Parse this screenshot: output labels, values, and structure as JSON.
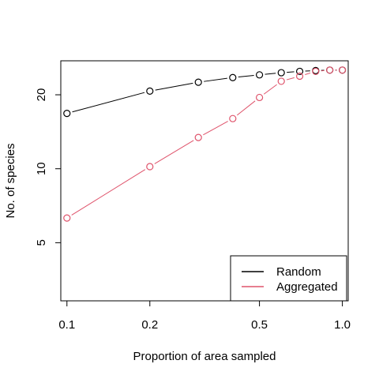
{
  "chart_data": {
    "type": "line",
    "xlabel": "Proportion of area sampled",
    "ylabel": "No. of species",
    "x_scale": "log",
    "y_scale": "log",
    "xlim": [
      0.095,
      1.05
    ],
    "ylim": [
      2.9,
      27.5
    ],
    "x_ticks": [
      {
        "value": 0.1,
        "label": "0.1"
      },
      {
        "value": 0.2,
        "label": "0.2"
      },
      {
        "value": 0.5,
        "label": "0.5"
      },
      {
        "value": 1.0,
        "label": "1.0"
      }
    ],
    "y_ticks": [
      {
        "value": 5,
        "label": "5"
      },
      {
        "value": 10,
        "label": "10"
      },
      {
        "value": 20,
        "label": "20"
      }
    ],
    "grid": false,
    "legend_position": "bottom-right",
    "series": [
      {
        "name": "Random",
        "color": "#000000",
        "x": [
          0.1,
          0.2,
          0.3,
          0.4,
          0.5,
          0.6,
          0.7,
          0.8,
          0.9,
          1.0
        ],
        "y": [
          16.8,
          20.7,
          22.5,
          23.5,
          24.1,
          24.6,
          24.9,
          25.1,
          25.2,
          25.2
        ]
      },
      {
        "name": "Aggregated",
        "color": "#DF536B",
        "x": [
          0.1,
          0.2,
          0.3,
          0.4,
          0.5,
          0.6,
          0.7,
          0.8,
          0.9,
          1.0
        ],
        "y": [
          6.3,
          10.2,
          13.4,
          16.0,
          19.5,
          22.7,
          23.8,
          24.9,
          25.2,
          25.2
        ]
      }
    ]
  }
}
